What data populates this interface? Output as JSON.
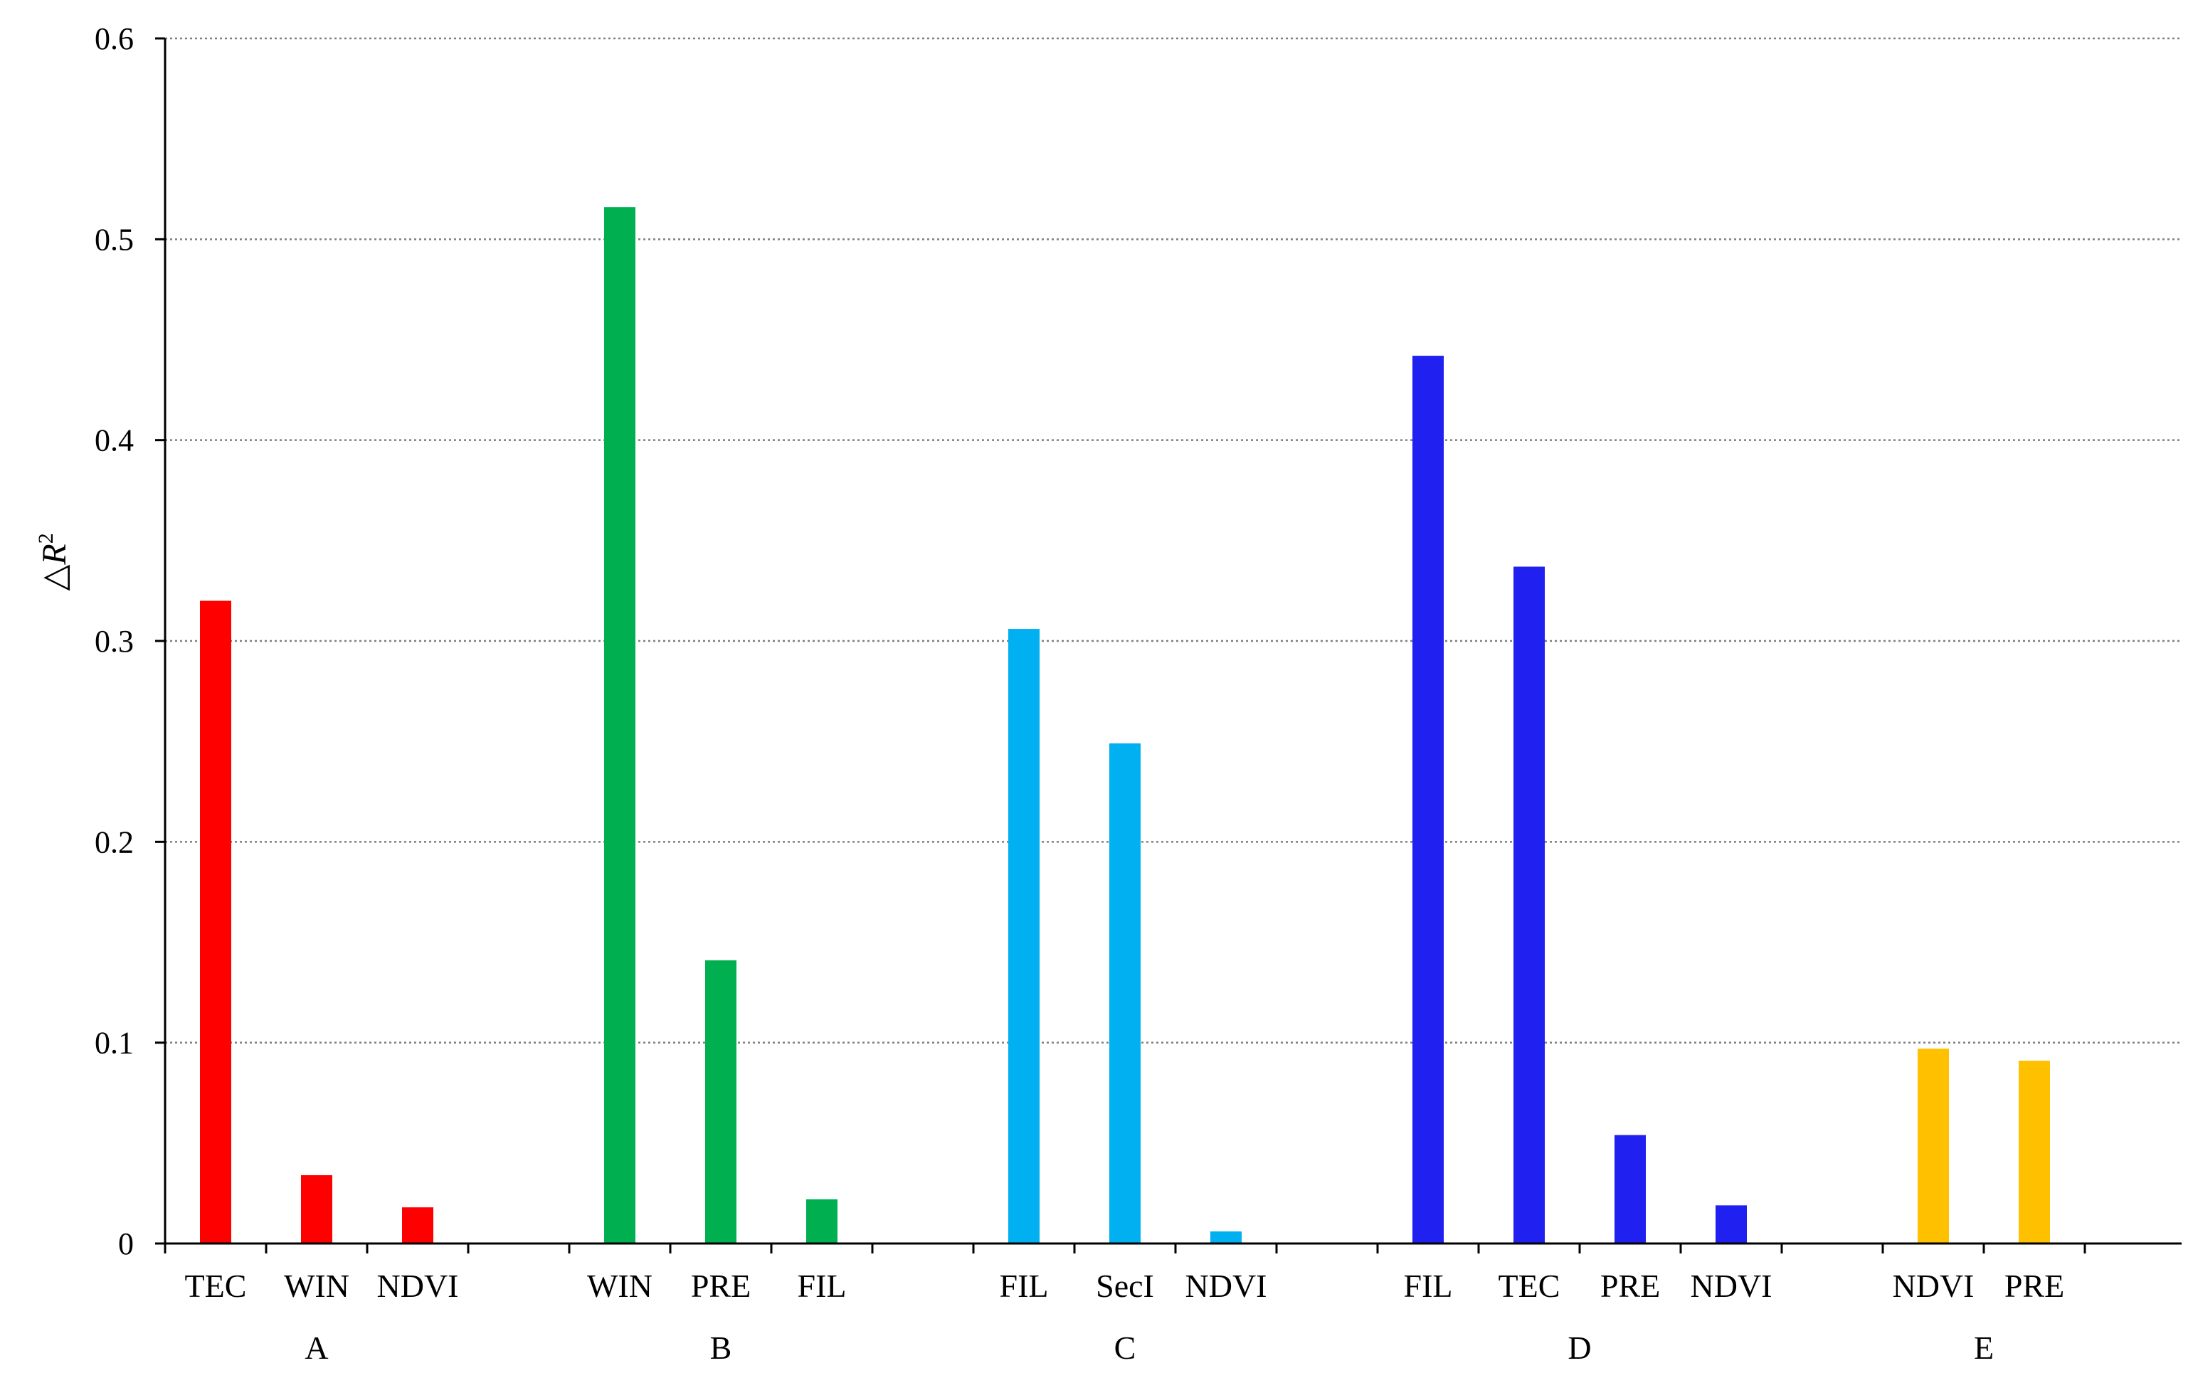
{
  "chart_data": {
    "type": "bar",
    "ylabel": {
      "prefix": "△",
      "main": "R",
      "sup": "2"
    },
    "ylim": [
      0,
      0.6
    ],
    "yticks": [
      0,
      0.1,
      0.2,
      0.3,
      0.4,
      0.5,
      0.6
    ],
    "ytick_labels": [
      "0",
      "0.1",
      "0.2",
      "0.3",
      "0.4",
      "0.5",
      "0.6"
    ],
    "grid": "horizontal-dotted",
    "groups": [
      {
        "name": "A",
        "color": "#ff0000",
        "categories": [
          "TEC",
          "WIN",
          "NDVI"
        ],
        "values": [
          0.32,
          0.034,
          0.018
        ]
      },
      {
        "name": "B",
        "color": "#00b050",
        "categories": [
          "WIN",
          "PRE",
          "FIL"
        ],
        "values": [
          0.516,
          0.141,
          0.022
        ]
      },
      {
        "name": "C",
        "color": "#00b0f0",
        "categories": [
          "FIL",
          "SecI",
          "NDVI"
        ],
        "values": [
          0.306,
          0.249,
          0.006
        ]
      },
      {
        "name": "D",
        "color": "#2020f0",
        "categories": [
          "FIL",
          "TEC",
          "PRE",
          "NDVI"
        ],
        "values": [
          0.442,
          0.337,
          0.054,
          0.019
        ]
      },
      {
        "name": "E",
        "color": "#ffc000",
        "categories": [
          "NDVI",
          "PRE"
        ],
        "values": [
          0.097,
          0.091
        ]
      }
    ]
  }
}
